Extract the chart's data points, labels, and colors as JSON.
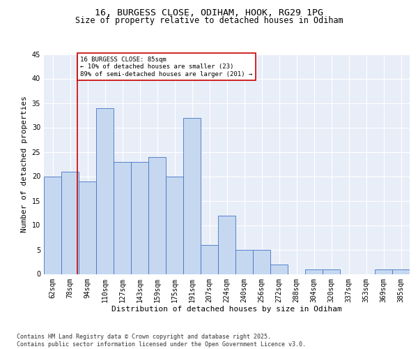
{
  "title_line1": "16, BURGESS CLOSE, ODIHAM, HOOK, RG29 1PG",
  "title_line2": "Size of property relative to detached houses in Odiham",
  "xlabel": "Distribution of detached houses by size in Odiham",
  "ylabel": "Number of detached properties",
  "categories": [
    "62sqm",
    "78sqm",
    "94sqm",
    "110sqm",
    "127sqm",
    "143sqm",
    "159sqm",
    "175sqm",
    "191sqm",
    "207sqm",
    "224sqm",
    "240sqm",
    "256sqm",
    "272sqm",
    "288sqm",
    "304sqm",
    "320sqm",
    "337sqm",
    "353sqm",
    "369sqm",
    "385sqm"
  ],
  "values": [
    20,
    21,
    19,
    34,
    23,
    23,
    24,
    20,
    32,
    6,
    12,
    5,
    5,
    2,
    0,
    1,
    1,
    0,
    0,
    1,
    1
  ],
  "bar_color": "#c5d8f0",
  "bar_edge_color": "#4472c4",
  "background_color": "#e8eef8",
  "vline_color": "#cc0000",
  "annotation_text": "16 BURGESS CLOSE: 85sqm\n← 10% of detached houses are smaller (23)\n89% of semi-detached houses are larger (201) →",
  "annotation_box_color": "white",
  "annotation_box_edge_color": "#cc0000",
  "ylim": [
    0,
    45
  ],
  "yticks": [
    0,
    5,
    10,
    15,
    20,
    25,
    30,
    35,
    40,
    45
  ],
  "footer_text": "Contains HM Land Registry data © Crown copyright and database right 2025.\nContains public sector information licensed under the Open Government Licence v3.0.",
  "title_fontsize": 9.5,
  "subtitle_fontsize": 8.5,
  "axis_label_fontsize": 8,
  "tick_fontsize": 7,
  "annotation_fontsize": 6.5,
  "footer_fontsize": 6
}
